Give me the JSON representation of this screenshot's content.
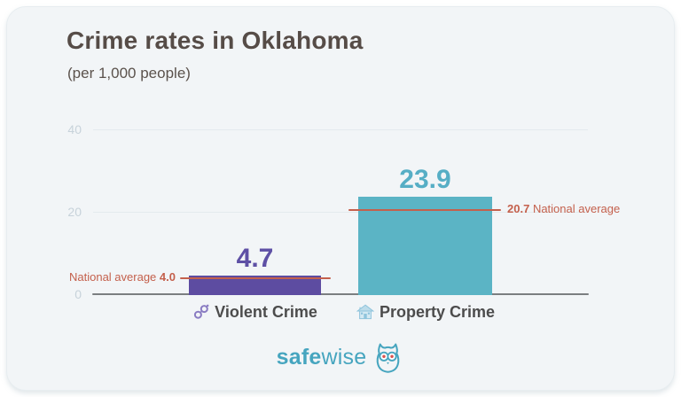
{
  "card": {
    "title": "Crime rates in Oklahoma",
    "subtitle": "(per 1,000 people)"
  },
  "chart_data": {
    "type": "bar",
    "title": "Crime rates in Oklahoma",
    "subtitle": "(per 1,000 people)",
    "categories": [
      "Violent Crime",
      "Property Crime"
    ],
    "values": [
      4.7,
      23.9
    ],
    "national_averages": [
      4.0,
      20.7
    ],
    "yticks": [
      0,
      20,
      40
    ],
    "ylim": [
      0,
      40
    ],
    "grid": "horizontal",
    "bar_colors": [
      "#5d4ca1",
      "#5bb4c5"
    ],
    "value_label_colors": [
      "#5e50a5",
      "#56aec5"
    ],
    "average_line_color": "#c4604c",
    "category_icons": [
      "handcuffs-icon",
      "house-icon"
    ],
    "avg_labels": [
      {
        "prefix": "National average",
        "value": "4.0"
      },
      {
        "value": "20.7",
        "suffix": "National average"
      }
    ]
  },
  "footer": {
    "brand_bold": "safe",
    "brand_light": "wise",
    "logo_icon": "owl-icon",
    "brand_color": "#46a5bf"
  }
}
